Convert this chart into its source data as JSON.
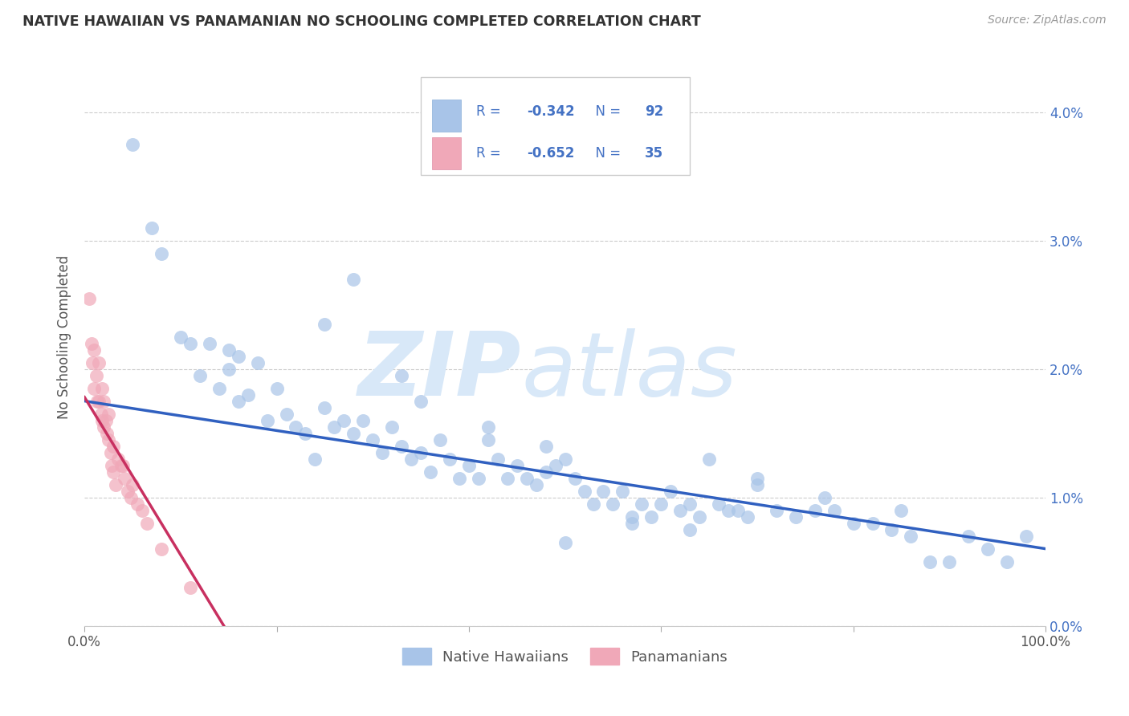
{
  "title": "NATIVE HAWAIIAN VS PANAMANIAN NO SCHOOLING COMPLETED CORRELATION CHART",
  "source": "Source: ZipAtlas.com",
  "ylabel_label": "No Schooling Completed",
  "xlim": [
    0.0,
    1.0
  ],
  "ylim": [
    0.0,
    0.045
  ],
  "y_ticks": [
    0.0,
    0.01,
    0.02,
    0.03,
    0.04
  ],
  "y_tick_labels": [
    "0.0%",
    "1.0%",
    "2.0%",
    "3.0%",
    "4.0%"
  ],
  "x_ticks": [
    0.0,
    0.2,
    0.4,
    0.6,
    0.8,
    1.0
  ],
  "x_tick_labels": [
    "0.0%",
    "",
    "",
    "",
    "",
    "100.0%"
  ],
  "legend_blue_label": "Native Hawaiians",
  "legend_pink_label": "Panamanians",
  "R_blue": "-0.342",
  "N_blue": "92",
  "R_pink": "-0.652",
  "N_pink": "35",
  "blue_scatter_color": "#a8c4e8",
  "pink_scatter_color": "#f0a8b8",
  "line_blue_color": "#3060c0",
  "line_pink_color": "#c83060",
  "tick_color": "#4472c4",
  "watermark_color": "#d8e8f8",
  "blue_scatter_x": [
    0.05,
    0.07,
    0.08,
    0.1,
    0.11,
    0.12,
    0.13,
    0.14,
    0.15,
    0.15,
    0.16,
    0.17,
    0.18,
    0.19,
    0.2,
    0.21,
    0.22,
    0.23,
    0.24,
    0.25,
    0.26,
    0.27,
    0.28,
    0.29,
    0.3,
    0.31,
    0.32,
    0.33,
    0.34,
    0.35,
    0.36,
    0.37,
    0.38,
    0.39,
    0.4,
    0.41,
    0.42,
    0.43,
    0.44,
    0.45,
    0.46,
    0.47,
    0.48,
    0.49,
    0.5,
    0.51,
    0.52,
    0.53,
    0.54,
    0.55,
    0.56,
    0.57,
    0.58,
    0.59,
    0.6,
    0.61,
    0.62,
    0.63,
    0.64,
    0.65,
    0.66,
    0.67,
    0.68,
    0.69,
    0.7,
    0.72,
    0.74,
    0.76,
    0.78,
    0.8,
    0.82,
    0.84,
    0.86,
    0.88,
    0.9,
    0.92,
    0.94,
    0.96,
    0.98,
    0.16,
    0.28,
    0.35,
    0.42,
    0.5,
    0.25,
    0.33,
    0.48,
    0.57,
    0.63,
    0.7,
    0.77,
    0.85
  ],
  "blue_scatter_y": [
    0.0375,
    0.031,
    0.029,
    0.0225,
    0.022,
    0.0195,
    0.022,
    0.0185,
    0.02,
    0.0215,
    0.0175,
    0.018,
    0.0205,
    0.016,
    0.0185,
    0.0165,
    0.0155,
    0.015,
    0.013,
    0.017,
    0.0155,
    0.016,
    0.015,
    0.016,
    0.0145,
    0.0135,
    0.0155,
    0.014,
    0.013,
    0.0135,
    0.012,
    0.0145,
    0.013,
    0.0115,
    0.0125,
    0.0115,
    0.0145,
    0.013,
    0.0115,
    0.0125,
    0.0115,
    0.011,
    0.012,
    0.0125,
    0.013,
    0.0115,
    0.0105,
    0.0095,
    0.0105,
    0.0095,
    0.0105,
    0.0085,
    0.0095,
    0.0085,
    0.0095,
    0.0105,
    0.009,
    0.0095,
    0.0085,
    0.013,
    0.0095,
    0.009,
    0.009,
    0.0085,
    0.011,
    0.009,
    0.0085,
    0.009,
    0.009,
    0.008,
    0.008,
    0.0075,
    0.007,
    0.005,
    0.005,
    0.007,
    0.006,
    0.005,
    0.007,
    0.021,
    0.027,
    0.0175,
    0.0155,
    0.0065,
    0.0235,
    0.0195,
    0.014,
    0.008,
    0.0075,
    0.0115,
    0.01,
    0.009
  ],
  "pink_scatter_x": [
    0.005,
    0.007,
    0.008,
    0.01,
    0.01,
    0.012,
    0.013,
    0.015,
    0.015,
    0.017,
    0.018,
    0.018,
    0.02,
    0.02,
    0.022,
    0.023,
    0.025,
    0.025,
    0.027,
    0.028,
    0.03,
    0.03,
    0.032,
    0.035,
    0.038,
    0.04,
    0.042,
    0.045,
    0.048,
    0.05,
    0.055,
    0.06,
    0.065,
    0.08,
    0.11
  ],
  "pink_scatter_y": [
    0.0255,
    0.022,
    0.0205,
    0.0215,
    0.0185,
    0.0195,
    0.0175,
    0.0205,
    0.0175,
    0.0165,
    0.0185,
    0.016,
    0.0175,
    0.0155,
    0.016,
    0.015,
    0.0165,
    0.0145,
    0.0135,
    0.0125,
    0.014,
    0.012,
    0.011,
    0.013,
    0.0125,
    0.0125,
    0.0115,
    0.0105,
    0.01,
    0.011,
    0.0095,
    0.009,
    0.008,
    0.006,
    0.003
  ],
  "blue_line_x": [
    0.0,
    1.0
  ],
  "blue_line_y": [
    0.0175,
    0.006
  ],
  "pink_line_x": [
    0.0,
    0.145
  ],
  "pink_line_y": [
    0.0178,
    0.0
  ]
}
